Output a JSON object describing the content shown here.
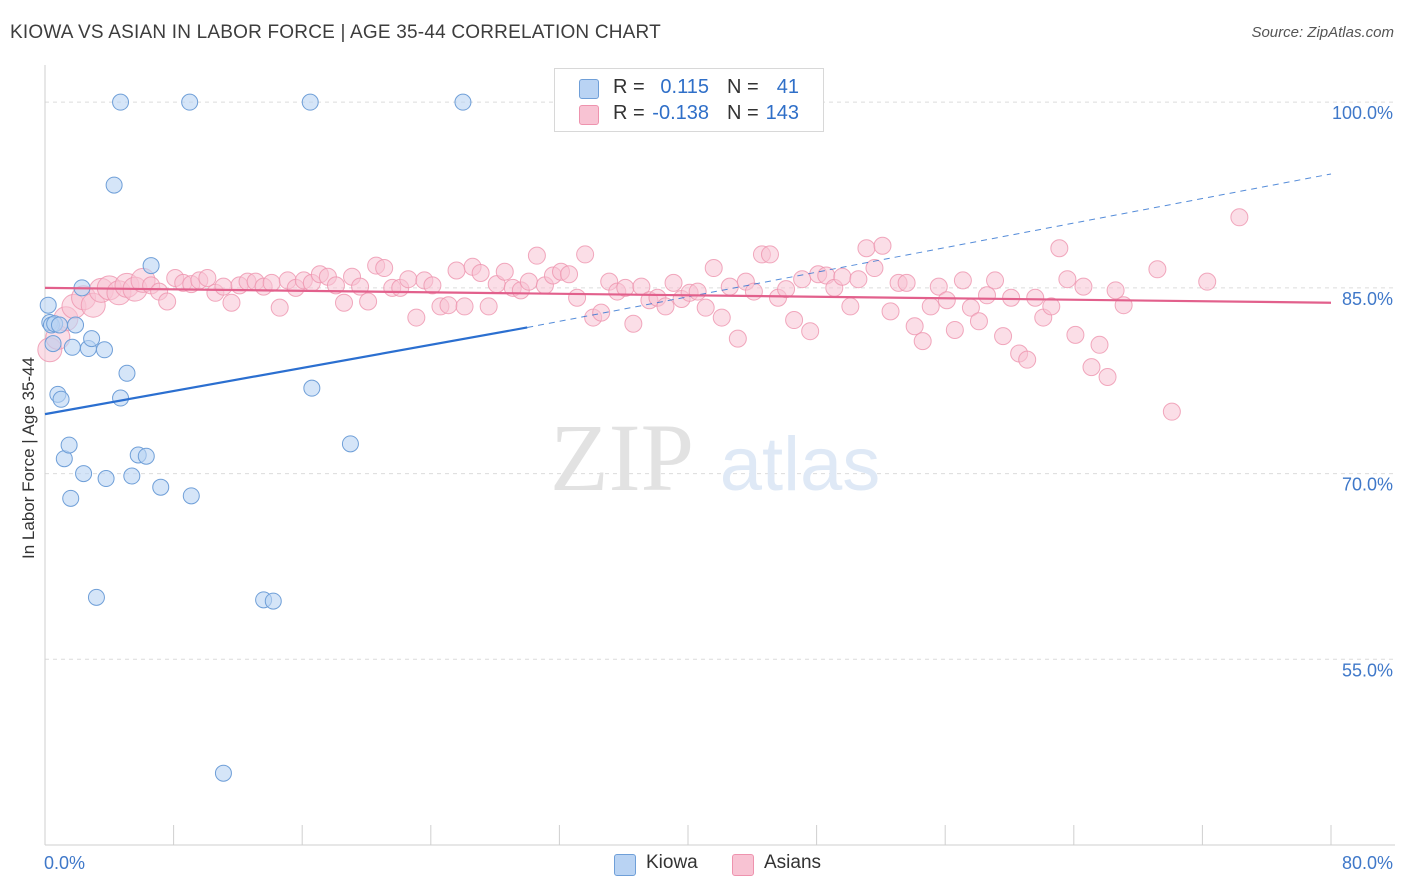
{
  "title": "KIOWA VS ASIAN IN LABOR FORCE | AGE 35-44 CORRELATION CHART",
  "source": "Source: ZipAtlas.com",
  "watermark": {
    "zip": "ZIP",
    "atlas": "atlas"
  },
  "colors": {
    "kiowa_fill": "#b9d3f3",
    "kiowa_stroke": "#6f9fd8",
    "kiowa_line": "#2b6fd0",
    "asians_fill": "#f8c3d3",
    "asians_stroke": "#ee93ae",
    "asians_line": "#e2608c",
    "axis_label": "#3f78c9",
    "grid": "#dcdcdc"
  },
  "legend_top": {
    "rows": [
      {
        "series": "Kiowa",
        "r_label": "R =",
        "r_value": "0.115",
        "n_label": "N =",
        "n_value": "41"
      },
      {
        "series": "Asians",
        "r_label": "R =",
        "r_value": "-0.138",
        "n_label": "N =",
        "n_value": "143"
      }
    ]
  },
  "legend_bottom": [
    "Kiowa",
    "Asians"
  ],
  "chart_data": {
    "type": "scatter",
    "title": "KIOWA VS ASIAN IN LABOR FORCE | AGE 35-44 CORRELATION CHART",
    "xlabel": "",
    "ylabel": "In Labor Force | Age 35-44",
    "xlim": [
      0,
      80
    ],
    "ylim": [
      40,
      103
    ],
    "x_tick_labels": [
      {
        "value": 0,
        "label": "0.0%"
      },
      {
        "value": 80,
        "label": "80.0%"
      }
    ],
    "y_tick_labels": [
      {
        "value": 100,
        "label": "100.0%"
      },
      {
        "value": 85,
        "label": "85.0%"
      },
      {
        "value": 70,
        "label": "70.0%"
      },
      {
        "value": 55,
        "label": "55.0%"
      }
    ],
    "grid": "horizontal dashed",
    "series": [
      {
        "name": "Kiowa",
        "r": 0.115,
        "n": 41,
        "trend": {
          "x0": 0,
          "y0": 74.8,
          "x1": 30,
          "y1": 81.8,
          "dashed_to_x": 80,
          "dashed_to_y": 94.2
        },
        "points": [
          [
            0.2,
            83.6
          ],
          [
            0.3,
            82.2
          ],
          [
            0.4,
            82.0
          ],
          [
            0.5,
            80.5
          ],
          [
            0.6,
            82.1
          ],
          [
            0.8,
            76.4
          ],
          [
            0.9,
            82.0
          ],
          [
            1.0,
            76.0
          ],
          [
            1.2,
            71.2
          ],
          [
            1.5,
            72.3
          ],
          [
            1.6,
            68.0
          ],
          [
            1.7,
            80.2
          ],
          [
            1.9,
            82.0
          ],
          [
            2.3,
            85.0
          ],
          [
            2.4,
            70.0
          ],
          [
            2.7,
            80.1
          ],
          [
            2.9,
            80.9
          ],
          [
            3.2,
            60.0
          ],
          [
            3.7,
            80.0
          ],
          [
            3.8,
            69.6
          ],
          [
            4.3,
            93.3
          ],
          [
            4.7,
            76.1
          ],
          [
            4.7,
            100.0
          ],
          [
            5.1,
            78.1
          ],
          [
            5.4,
            69.8
          ],
          [
            5.8,
            71.5
          ],
          [
            6.3,
            71.4
          ],
          [
            6.6,
            86.8
          ],
          [
            7.2,
            68.9
          ],
          [
            9.0,
            100.0
          ],
          [
            9.1,
            68.2
          ],
          [
            11.1,
            45.8
          ],
          [
            13.6,
            59.8
          ],
          [
            14.2,
            59.7
          ],
          [
            16.5,
            100.0
          ],
          [
            16.6,
            76.9
          ],
          [
            19.0,
            72.4
          ],
          [
            26.0,
            100.0
          ]
        ]
      },
      {
        "name": "Asians",
        "r": -0.138,
        "n": 143,
        "trend": {
          "x0": 0,
          "y0": 85.0,
          "x1": 80,
          "y1": 83.8
        },
        "points": [
          [
            0.3,
            80.0
          ],
          [
            0.8,
            81.0
          ],
          [
            1.3,
            82.5
          ],
          [
            1.8,
            83.5
          ],
          [
            2.4,
            84.2
          ],
          [
            3.0,
            83.6
          ],
          [
            3.5,
            84.8
          ],
          [
            4.0,
            85.0
          ],
          [
            4.6,
            84.6
          ],
          [
            5.1,
            85.2
          ],
          [
            5.6,
            84.9
          ],
          [
            6.1,
            85.6
          ],
          [
            6.6,
            85.2
          ],
          [
            7.1,
            84.7
          ],
          [
            7.6,
            83.9
          ],
          [
            8.1,
            85.8
          ],
          [
            8.6,
            85.4
          ],
          [
            9.1,
            85.3
          ],
          [
            9.6,
            85.6
          ],
          [
            10.1,
            85.8
          ],
          [
            10.6,
            84.6
          ],
          [
            11.1,
            85.1
          ],
          [
            11.6,
            83.8
          ],
          [
            12.1,
            85.2
          ],
          [
            12.6,
            85.5
          ],
          [
            13.1,
            85.5
          ],
          [
            13.6,
            85.1
          ],
          [
            14.1,
            85.4
          ],
          [
            14.6,
            83.4
          ],
          [
            15.1,
            85.6
          ],
          [
            15.6,
            85.0
          ],
          [
            16.1,
            85.6
          ],
          [
            16.6,
            85.4
          ],
          [
            17.1,
            86.1
          ],
          [
            17.6,
            85.9
          ],
          [
            18.1,
            85.2
          ],
          [
            18.6,
            83.8
          ],
          [
            19.1,
            85.9
          ],
          [
            19.6,
            85.1
          ],
          [
            20.1,
            83.9
          ],
          [
            20.6,
            86.8
          ],
          [
            21.1,
            86.6
          ],
          [
            21.6,
            85.0
          ],
          [
            22.1,
            85.0
          ],
          [
            22.6,
            85.7
          ],
          [
            23.1,
            82.6
          ],
          [
            23.6,
            85.6
          ],
          [
            24.1,
            85.2
          ],
          [
            24.6,
            83.5
          ],
          [
            25.1,
            83.6
          ],
          [
            25.6,
            86.4
          ],
          [
            26.1,
            83.5
          ],
          [
            26.6,
            86.7
          ],
          [
            27.1,
            86.2
          ],
          [
            27.6,
            83.5
          ],
          [
            28.1,
            85.3
          ],
          [
            28.6,
            86.3
          ],
          [
            29.1,
            85.0
          ],
          [
            29.6,
            84.8
          ],
          [
            30.1,
            85.5
          ],
          [
            30.6,
            87.6
          ],
          [
            31.1,
            85.2
          ],
          [
            31.6,
            86.0
          ],
          [
            32.1,
            86.3
          ],
          [
            32.6,
            86.1
          ],
          [
            33.1,
            84.2
          ],
          [
            33.6,
            87.7
          ],
          [
            34.1,
            82.6
          ],
          [
            34.6,
            83.0
          ],
          [
            35.1,
            85.5
          ],
          [
            35.6,
            84.7
          ],
          [
            36.1,
            85.0
          ],
          [
            36.6,
            82.1
          ],
          [
            37.1,
            85.1
          ],
          [
            37.6,
            84.0
          ],
          [
            38.1,
            84.2
          ],
          [
            38.6,
            83.5
          ],
          [
            39.1,
            85.4
          ],
          [
            39.6,
            84.1
          ],
          [
            40.1,
            84.6
          ],
          [
            40.6,
            84.7
          ],
          [
            41.1,
            83.4
          ],
          [
            41.6,
            86.6
          ],
          [
            42.1,
            82.6
          ],
          [
            42.6,
            85.1
          ],
          [
            43.1,
            80.9
          ],
          [
            43.6,
            85.5
          ],
          [
            44.1,
            84.7
          ],
          [
            44.6,
            87.7
          ],
          [
            45.1,
            87.7
          ],
          [
            45.6,
            84.2
          ],
          [
            46.1,
            84.9
          ],
          [
            46.6,
            82.4
          ],
          [
            47.1,
            85.7
          ],
          [
            47.6,
            81.5
          ],
          [
            48.1,
            86.1
          ],
          [
            48.6,
            86.0
          ],
          [
            49.1,
            85.0
          ],
          [
            49.6,
            85.9
          ],
          [
            50.1,
            83.5
          ],
          [
            50.6,
            85.7
          ],
          [
            51.1,
            88.2
          ],
          [
            51.6,
            86.6
          ],
          [
            52.1,
            88.4
          ],
          [
            52.6,
            83.1
          ],
          [
            53.1,
            85.4
          ],
          [
            53.6,
            85.4
          ],
          [
            54.1,
            81.9
          ],
          [
            54.6,
            80.7
          ],
          [
            55.1,
            83.5
          ],
          [
            55.6,
            85.1
          ],
          [
            56.1,
            84.0
          ],
          [
            56.6,
            81.6
          ],
          [
            57.1,
            85.6
          ],
          [
            57.6,
            83.4
          ],
          [
            58.1,
            82.3
          ],
          [
            58.6,
            84.4
          ],
          [
            59.1,
            85.6
          ],
          [
            59.6,
            81.1
          ],
          [
            60.1,
            84.2
          ],
          [
            60.6,
            79.7
          ],
          [
            61.1,
            79.2
          ],
          [
            61.6,
            84.2
          ],
          [
            62.1,
            82.6
          ],
          [
            62.6,
            83.5
          ],
          [
            63.1,
            88.2
          ],
          [
            63.6,
            85.7
          ],
          [
            64.1,
            81.2
          ],
          [
            64.6,
            85.1
          ],
          [
            65.1,
            78.6
          ],
          [
            65.6,
            80.4
          ],
          [
            66.1,
            77.8
          ],
          [
            66.6,
            84.8
          ],
          [
            67.1,
            83.6
          ],
          [
            69.2,
            86.5
          ],
          [
            70.1,
            75.0
          ],
          [
            72.3,
            85.5
          ],
          [
            74.3,
            90.7
          ]
        ]
      }
    ]
  }
}
